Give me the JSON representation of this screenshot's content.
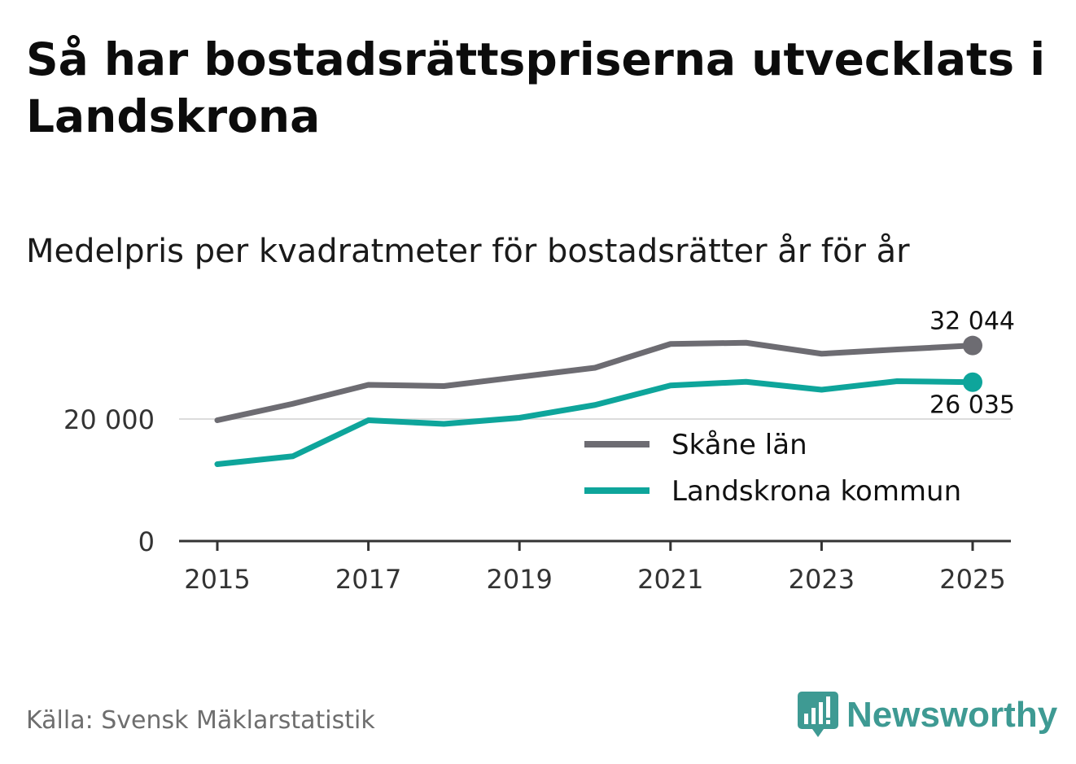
{
  "title": "Så har bostadsrättspriserna utvecklats i Landskrona",
  "subtitle": "Medelpris per kvadratmeter för bostadsrätter år för år",
  "source": "Källa: Svensk Mäklarstatistik",
  "brand": {
    "name": "Newsworthy",
    "icon": "newsworthy-logo-icon",
    "color": "#3e9a93"
  },
  "chart_data": {
    "type": "line",
    "title": "Medelpris per kvadratmeter för bostadsrätter år för år",
    "xlabel": "",
    "ylabel": "",
    "x": [
      2015,
      2016,
      2017,
      2018,
      2019,
      2020,
      2021,
      2022,
      2023,
      2024,
      2025
    ],
    "xticks": [
      2015,
      2017,
      2019,
      2021,
      2023,
      2025
    ],
    "xtick_labels": [
      "2015",
      "2017",
      "2019",
      "2021",
      "2023",
      "2025"
    ],
    "yticks": [
      0,
      20000
    ],
    "ytick_labels": [
      "0",
      "20 000"
    ],
    "ylim": [
      0,
      40000
    ],
    "grid": true,
    "legend": "bottom-right",
    "series": [
      {
        "name": "Skåne län",
        "color": "#6d6c72",
        "values": [
          19800,
          22500,
          25600,
          25400,
          26900,
          28400,
          32300,
          32500,
          30700,
          31400,
          32044
        ],
        "end_label": "32 044"
      },
      {
        "name": "Landskrona kommun",
        "color": "#0ea59b",
        "values": [
          12600,
          13900,
          19800,
          19200,
          20200,
          22300,
          25500,
          26100,
          24800,
          26200,
          26035
        ],
        "end_label": "26 035"
      }
    ]
  }
}
